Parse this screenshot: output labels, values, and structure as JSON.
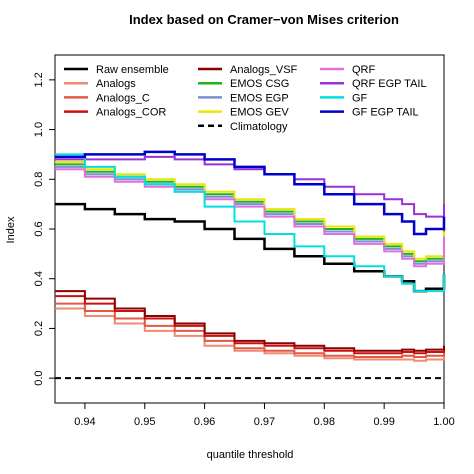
{
  "chart_data": {
    "type": "line",
    "title": "Index based on Cramer−von Mises criterion",
    "xlabel": "quantile threshold",
    "ylabel": "Index",
    "xlim": [
      0.935,
      1.0
    ],
    "ylim": [
      -0.1,
      1.3
    ],
    "x_ticks": [
      "0.94",
      "0.95",
      "0.96",
      "0.97",
      "0.98",
      "0.99",
      "1.00"
    ],
    "y_ticks": [
      "0.0",
      "0.2",
      "0.4",
      "0.6",
      "0.8",
      "1.0",
      "1.2"
    ],
    "legend_position": "top",
    "x": [
      0.935,
      0.94,
      0.945,
      0.95,
      0.955,
      0.96,
      0.965,
      0.97,
      0.975,
      0.98,
      0.985,
      0.99,
      0.993,
      0.995,
      0.997,
      1.0
    ],
    "series": [
      {
        "name": "Raw ensemble",
        "color": "#000000",
        "dashed": false,
        "width": 2.5,
        "values": [
          0.7,
          0.68,
          0.66,
          0.64,
          0.63,
          0.6,
          0.56,
          0.52,
          0.49,
          0.46,
          0.43,
          0.41,
          0.39,
          0.35,
          0.36,
          0.42
        ]
      },
      {
        "name": "Analogs",
        "color": "#f08a70",
        "dashed": false,
        "width": 2,
        "values": [
          0.28,
          0.25,
          0.22,
          0.19,
          0.17,
          0.13,
          0.11,
          0.1,
          0.09,
          0.08,
          0.075,
          0.075,
          0.075,
          0.07,
          0.075,
          0.09
        ]
      },
      {
        "name": "Analogs_C",
        "color": "#e05a45",
        "dashed": false,
        "width": 2,
        "values": [
          0.3,
          0.27,
          0.24,
          0.21,
          0.19,
          0.15,
          0.12,
          0.11,
          0.1,
          0.09,
          0.085,
          0.085,
          0.09,
          0.085,
          0.09,
          0.11
        ]
      },
      {
        "name": "Analogs_COR",
        "color": "#cc1010",
        "dashed": false,
        "width": 2,
        "values": [
          0.33,
          0.3,
          0.27,
          0.24,
          0.21,
          0.17,
          0.14,
          0.13,
          0.12,
          0.11,
          0.1,
          0.1,
          0.105,
          0.1,
          0.105,
          0.13
        ]
      },
      {
        "name": "Analogs_VSF",
        "color": "#8b0000",
        "dashed": false,
        "width": 2,
        "values": [
          0.35,
          0.32,
          0.28,
          0.25,
          0.22,
          0.18,
          0.15,
          0.14,
          0.13,
          0.12,
          0.11,
          0.11,
          0.115,
          0.11,
          0.115,
          0.13
        ]
      },
      {
        "name": "EMOS CSG",
        "color": "#22b022",
        "dashed": false,
        "width": 2,
        "values": [
          0.86,
          0.83,
          0.81,
          0.79,
          0.77,
          0.74,
          0.71,
          0.67,
          0.63,
          0.6,
          0.56,
          0.53,
          0.5,
          0.47,
          0.48,
          0.58
        ]
      },
      {
        "name": "EMOS EGP",
        "color": "#7a8fd8",
        "dashed": false,
        "width": 2,
        "values": [
          0.85,
          0.82,
          0.8,
          0.78,
          0.76,
          0.73,
          0.7,
          0.66,
          0.62,
          0.59,
          0.55,
          0.52,
          0.49,
          0.46,
          0.47,
          0.56
        ]
      },
      {
        "name": "EMOS GEV",
        "color": "#e8e800",
        "dashed": false,
        "width": 2,
        "values": [
          0.87,
          0.84,
          0.82,
          0.8,
          0.78,
          0.75,
          0.72,
          0.68,
          0.64,
          0.61,
          0.57,
          0.54,
          0.51,
          0.48,
          0.49,
          0.59
        ]
      },
      {
        "name": "Climatology",
        "color": "#000000",
        "dashed": true,
        "width": 2,
        "values": [
          0.0,
          0.0,
          0.0,
          0.0,
          0.0,
          0.0,
          0.0,
          0.0,
          0.0,
          0.0,
          0.0,
          0.0,
          0.0,
          0.0,
          0.0,
          0.0
        ]
      },
      {
        "name": "QRF",
        "color": "#e070e0",
        "dashed": false,
        "width": 2,
        "values": [
          0.84,
          0.81,
          0.79,
          0.77,
          0.75,
          0.72,
          0.69,
          0.65,
          0.61,
          0.58,
          0.54,
          0.51,
          0.48,
          0.45,
          0.46,
          0.57
        ]
      },
      {
        "name": "QRF EGP TAIL",
        "color": "#9a30d8",
        "dashed": false,
        "width": 2,
        "values": [
          0.88,
          0.88,
          0.88,
          0.89,
          0.88,
          0.86,
          0.84,
          0.82,
          0.8,
          0.77,
          0.74,
          0.72,
          0.7,
          0.66,
          0.65,
          0.7
        ]
      },
      {
        "name": "GF",
        "color": "#00e0e0",
        "dashed": false,
        "width": 2,
        "values": [
          0.9,
          0.85,
          0.81,
          0.78,
          0.75,
          0.69,
          0.63,
          0.58,
          0.53,
          0.49,
          0.45,
          0.41,
          0.38,
          0.35,
          0.35,
          0.42
        ]
      },
      {
        "name": "GF EGP TAIL",
        "color": "#0000cc",
        "dashed": false,
        "width": 2.5,
        "values": [
          0.89,
          0.9,
          0.9,
          0.91,
          0.9,
          0.88,
          0.85,
          0.82,
          0.78,
          0.74,
          0.7,
          0.66,
          0.63,
          0.58,
          0.6,
          0.65
        ]
      }
    ]
  }
}
